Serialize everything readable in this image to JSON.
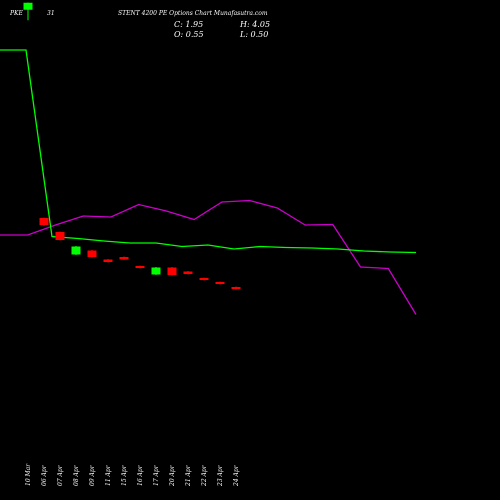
{
  "header": {
    "symbol": "PKE",
    "expiry_day": "31",
    "title": "STENT 4200 PE Options Chart Munafasutra.com",
    "close_label": "C: 1.95",
    "high_label": "H: 4.05",
    "open_label": "O: 0.55",
    "low_label": "L: 0.50"
  },
  "colors": {
    "background": "#000000",
    "green_line": "#00ff00",
    "magenta_line": "#cc00cc",
    "bull_candle": "#00ff00",
    "bear_candle": "#ff0000",
    "text": "#ffffff"
  },
  "chart_data": {
    "type": "candlestick",
    "categories": [
      "10 Mar",
      "06 Apr",
      "07 Apr",
      "08 Apr",
      "09 Apr",
      "11 Apr",
      "15 Apr",
      "16 Apr",
      "17 Apr",
      "20 Apr",
      "21 Apr",
      "22 Apr",
      "23 Apr",
      "24 Apr"
    ],
    "candles": [
      {
        "open": 0.55,
        "high": 4.05,
        "low": 0.5,
        "close": 1.95
      },
      {
        "open": 45.0,
        "high": 45.2,
        "low": 43.5,
        "close": 43.6
      },
      {
        "open": 48.0,
        "high": 48.1,
        "low": 46.3,
        "close": 46.4
      },
      {
        "open": 49.3,
        "high": 51.0,
        "low": 49.2,
        "close": 50.9
      },
      {
        "open": 51.4,
        "high": 51.5,
        "low": 50.0,
        "close": 50.1
      },
      {
        "open": 52.4,
        "high": 52.5,
        "low": 51.8,
        "close": 51.9
      },
      {
        "open": 51.9,
        "high": 52.0,
        "low": 51.3,
        "close": 51.4
      },
      {
        "open": 53.6,
        "high": 53.7,
        "low": 53.1,
        "close": 53.2
      },
      {
        "open": 53.5,
        "high": 55.0,
        "low": 53.4,
        "close": 54.9
      },
      {
        "open": 55.0,
        "high": 55.1,
        "low": 53.4,
        "close": 53.5
      },
      {
        "open": 54.8,
        "high": 54.9,
        "low": 54.2,
        "close": 54.3
      },
      {
        "open": 56.0,
        "high": 56.1,
        "low": 55.5,
        "close": 55.6
      },
      {
        "open": 56.8,
        "high": 56.9,
        "low": 56.3,
        "close": 56.4
      },
      {
        "open": 57.8,
        "high": 57.9,
        "low": 57.3,
        "close": 57.4
      }
    ],
    "green_series": [
      10,
      10,
      47.3,
      47.7,
      48.2,
      48.6,
      48.6,
      49.3,
      49.0,
      49.8,
      49.3,
      49.5,
      49.6,
      49.8,
      50.2,
      50.4,
      50.5
    ],
    "magenta_series": [
      47.0,
      47.0,
      45.0,
      43.2,
      43.4,
      40.9,
      42.2,
      43.9,
      40.4,
      40.1,
      41.6,
      45.0,
      44.9,
      53.4,
      53.7,
      62.9
    ],
    "ylim": [
      0,
      100
    ]
  }
}
